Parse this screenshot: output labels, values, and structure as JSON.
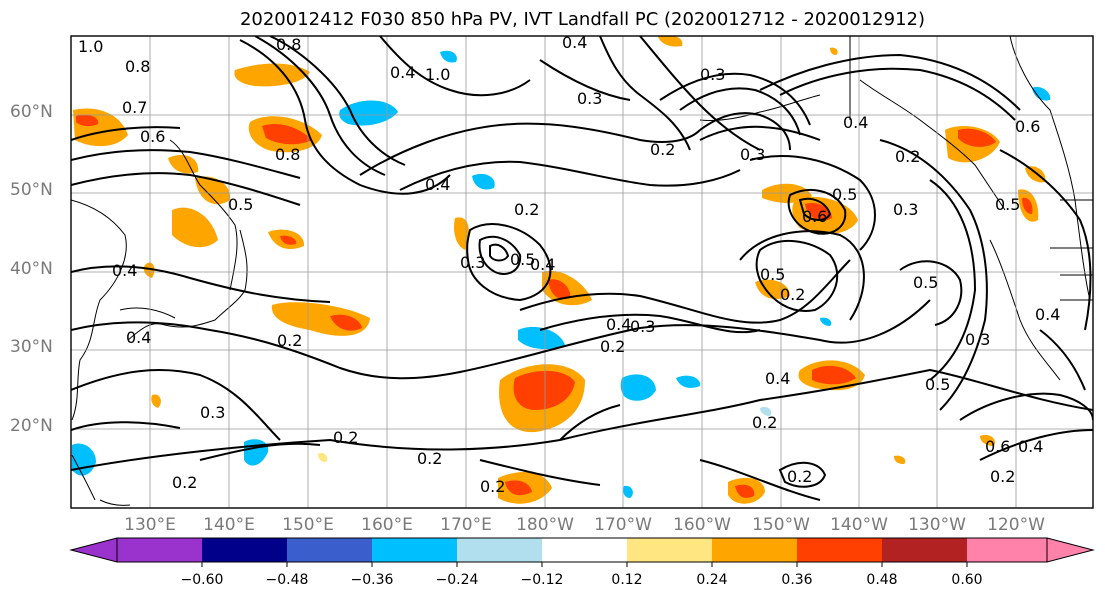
{
  "title": "2020012412 F030 850 hPa PV, IVT Landfall PC (2020012712 - 2020012912)",
  "map": {
    "lat_labels": [
      "60°N",
      "50°N",
      "40°N",
      "30°N",
      "20°N"
    ],
    "lon_labels": [
      "130°E",
      "140°E",
      "150°E",
      "160°E",
      "170°E",
      "180°W",
      "170°W",
      "160°W",
      "150°W",
      "140°W",
      "130°W",
      "120°W"
    ],
    "contour_labels": [
      "1.0",
      "0.8",
      "0.7",
      "0.6",
      "0.5",
      "0.4",
      "0.3",
      "0.2",
      "0.8",
      "0.4",
      "0.3",
      "0.4",
      "0.2",
      "0.5",
      "0.4",
      "0.2",
      "0.4",
      "0.3",
      "0.2",
      "0.3",
      "0.2",
      "0.2",
      "0.5",
      "0.6",
      "0.5",
      "0.2",
      "0.4",
      "0.3",
      "0.2",
      "0.5",
      "0.3",
      "0.6",
      "0.4",
      "0.2",
      "0.2",
      "0.5",
      "0.3",
      "0.2"
    ]
  },
  "colorbar": {
    "ticks": [
      "−0.60",
      "−0.48",
      "−0.36",
      "−0.24",
      "−0.12",
      "0.12",
      "0.24",
      "0.36",
      "0.48",
      "0.60"
    ],
    "colors": [
      "#9a32cd",
      "#00008b",
      "#3a5fcd",
      "#00bfff",
      "#b2dfee",
      "#ffffff",
      "#ffe680",
      "#ffa500",
      "#ff4000",
      "#b22222",
      "#ff82ab"
    ]
  }
}
